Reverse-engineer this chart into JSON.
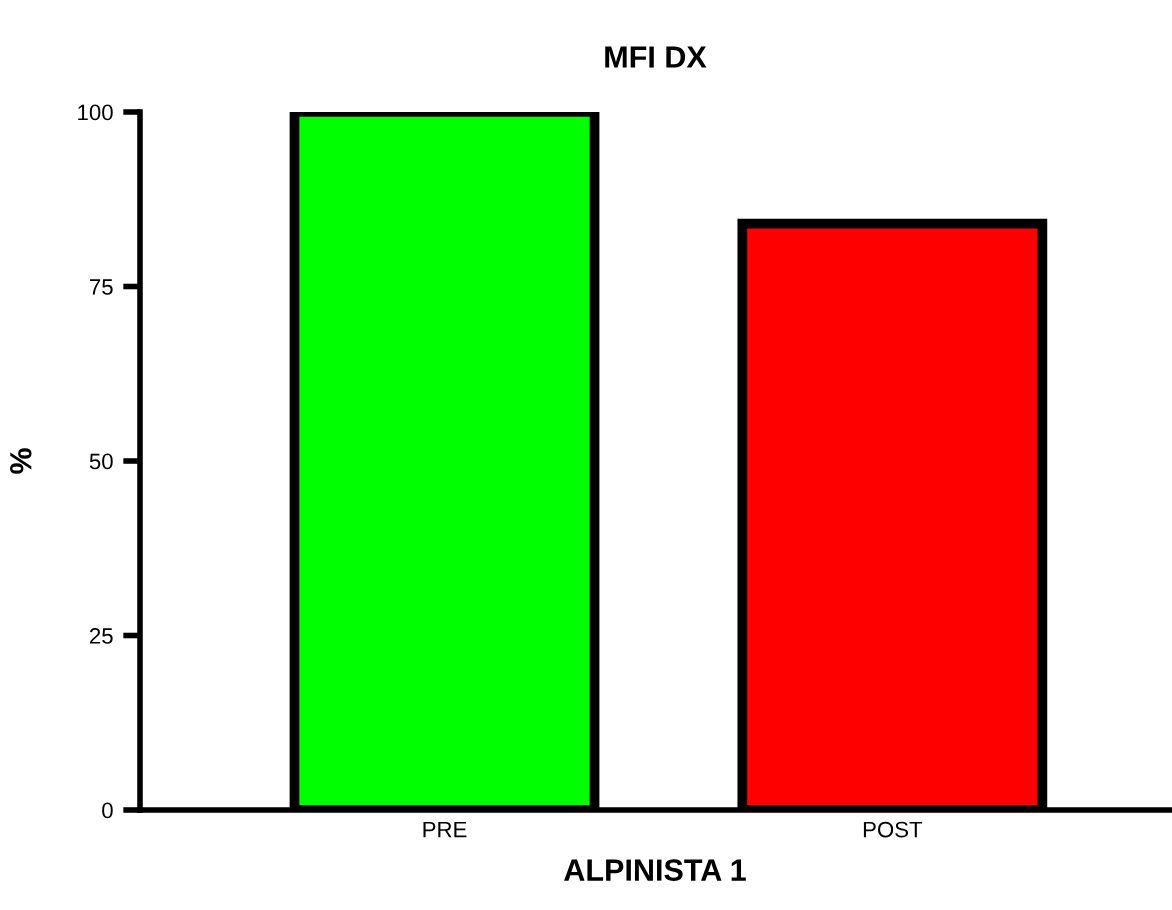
{
  "chart_data": {
    "type": "bar",
    "title": "MFI DX",
    "xlabel": "ALPINISTA 1",
    "ylabel": "%",
    "categories": [
      "PRE",
      "POST"
    ],
    "values": [
      100,
      84
    ],
    "colors": [
      "#00ff00",
      "#ff0000"
    ],
    "ylim": [
      0,
      100
    ],
    "yticks": [
      0,
      25,
      50,
      75,
      100
    ],
    "grid": false,
    "legend": false
  }
}
